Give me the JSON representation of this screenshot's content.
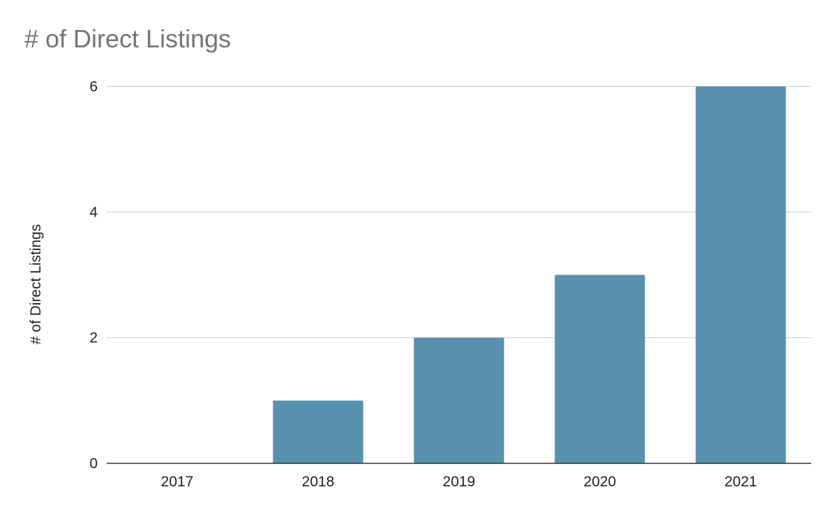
{
  "chart_data": {
    "type": "bar",
    "title": "# of Direct Listings",
    "xlabel": "",
    "ylabel": "# of Direct Listings",
    "categories": [
      "2017",
      "2018",
      "2019",
      "2020",
      "2021"
    ],
    "series": [
      {
        "values": [
          0,
          1,
          2,
          3,
          6
        ]
      }
    ],
    "ylim": [
      0,
      6
    ],
    "yticks": [
      0,
      2,
      4,
      6
    ],
    "grid": true,
    "legend": "none",
    "colors": {
      "bar": "#5891ad",
      "grid": "#cccccc",
      "axis": "#333333",
      "title": "#757575",
      "text": "#222222"
    }
  }
}
